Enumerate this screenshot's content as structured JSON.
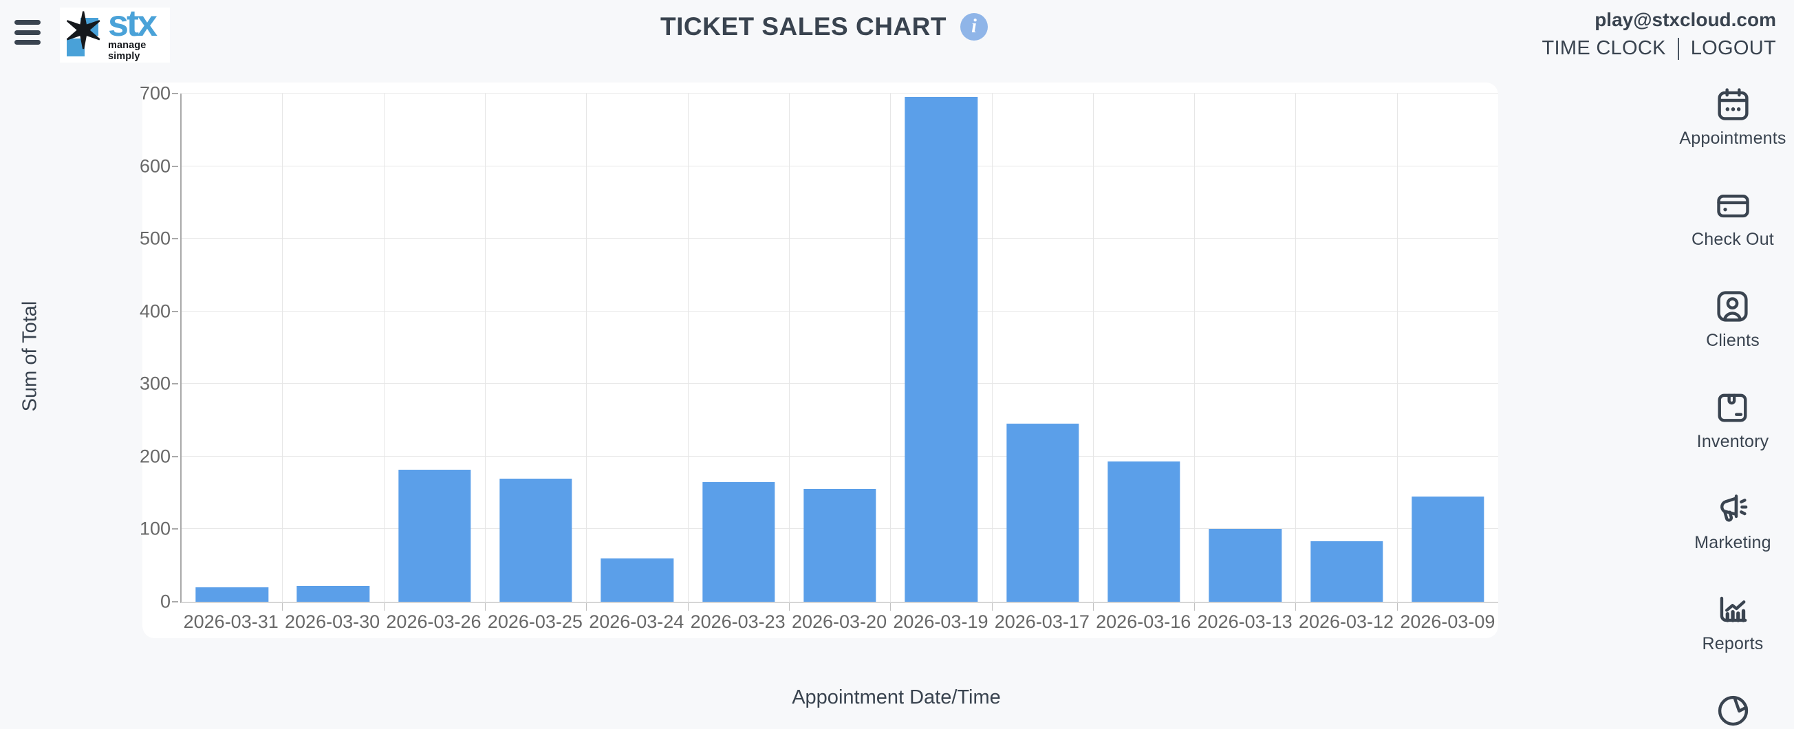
{
  "header": {
    "title": "TICKET SALES CHART",
    "info_icon": "info-icon",
    "menu_icon": "hamburger-menu-icon",
    "logo_text": "stx",
    "logo_tagline": "manage simply",
    "email": "play@stxcloud.com",
    "time_clock_label": "TIME CLOCK",
    "logout_label": "LOGOUT"
  },
  "chart_data": {
    "type": "bar",
    "title": "TICKET SALES CHART",
    "categories": [
      "2026-03-31",
      "2026-03-30",
      "2026-03-26",
      "2026-03-25",
      "2026-03-24",
      "2026-03-23",
      "2026-03-20",
      "2026-03-19",
      "2026-03-17",
      "2026-03-16",
      "2026-03-13",
      "2026-03-12",
      "2026-03-09"
    ],
    "values": [
      20,
      22,
      182,
      170,
      60,
      165,
      155,
      695,
      245,
      193,
      100,
      83,
      145
    ],
    "xlabel": "Appointment Date/Time",
    "ylabel": "Sum of Total",
    "ylim": [
      0,
      700
    ],
    "yticks": [
      0,
      100,
      200,
      300,
      400,
      500,
      600,
      700
    ],
    "grid": true,
    "legend": false,
    "bar_color": "#5b9fe9"
  },
  "sidebar": {
    "items": [
      {
        "icon": "calendar-icon",
        "label": "Appointments"
      },
      {
        "icon": "credit-card-icon",
        "label": "Check Out"
      },
      {
        "icon": "client-card-icon",
        "label": "Clients"
      },
      {
        "icon": "package-icon",
        "label": "Inventory"
      },
      {
        "icon": "megaphone-icon",
        "label": "Marketing"
      },
      {
        "icon": "bar-chart-icon",
        "label": "Reports"
      },
      {
        "icon": "pie-chart-icon",
        "label": ""
      }
    ]
  },
  "colors": {
    "page_background": "#f7f8fa",
    "panel_background": "#ffffff",
    "bar_fill": "#5b9fe9",
    "accent_info": "#8fb5e8",
    "nav_ink": "#3a4450",
    "tick_text": "#686868",
    "gridline": "#e8e8e8",
    "logo_blue": "#4aa2d8"
  }
}
